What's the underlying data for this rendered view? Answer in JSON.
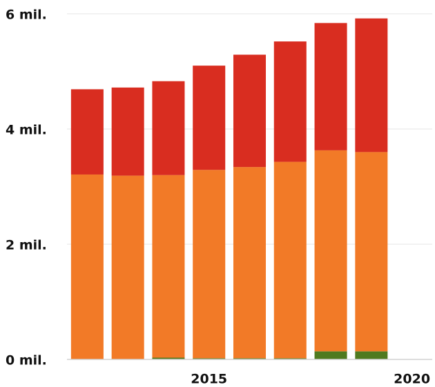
{
  "chart_data": {
    "type": "stacked_bar",
    "x": [
      2012,
      2013,
      2014,
      2015,
      2016,
      2017,
      2018,
      2019
    ],
    "series": [
      {
        "color": "#4f7a1f",
        "values": [
          0,
          0,
          0.03,
          0.02,
          0.02,
          0.02,
          0.14,
          0.14
        ]
      },
      {
        "color": "#f27a27",
        "values": [
          3.21,
          3.19,
          3.17,
          3.27,
          3.32,
          3.41,
          3.49,
          3.46
        ]
      },
      {
        "color": "#d92d20",
        "values": [
          1.48,
          1.53,
          1.63,
          1.81,
          1.95,
          2.09,
          2.21,
          2.32
        ]
      }
    ],
    "xlim": [
      2011.5,
      2020.5
    ],
    "xticks": [
      2015,
      2020
    ],
    "ylim": [
      0,
      6
    ],
    "yticks": [
      {
        "value": 0,
        "label": "0 mil."
      },
      {
        "value": 2,
        "label": "2 mil."
      },
      {
        "value": 4,
        "label": "4 mil."
      },
      {
        "value": 6,
        "label": "6 mil."
      }
    ],
    "grid": true
  }
}
